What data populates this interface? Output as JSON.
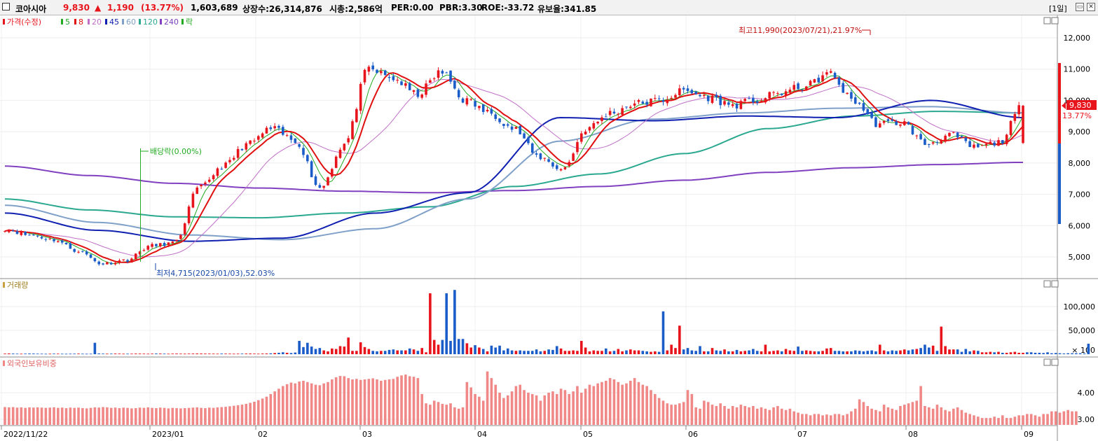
{
  "header": {
    "name": "코아시아",
    "price": "9,830",
    "change_arrow": "▲",
    "change": "1,190",
    "change_pct": "(13.77%)",
    "volume": "1,603,689",
    "listed_shares": "상장수:26,314,876",
    "market_cap": "시총:2,586억",
    "per": "PER:0.00",
    "pbr": "PBR:3.30",
    "roe": "ROE:-33.72",
    "float_ratio": "유보율:341.85",
    "period": "[1일]"
  },
  "colors": {
    "up": "#e8141c",
    "down": "#1a5cc8",
    "ma5": "#22aa22",
    "ma8": "#e01010",
    "ma20": "#c070c8",
    "ma45": "#1020b0",
    "ma60": "#7fa0c8",
    "ma120": "#2aa890",
    "ma240": "#8040c0",
    "foreign": "#f08888"
  },
  "chart_data": [
    {
      "type": "candlestick",
      "legend": [
        "가격(수정)",
        "5",
        "8",
        "20",
        "45",
        "60",
        "120",
        "240",
        "락"
      ],
      "y_ticks": [
        "12,000",
        "11,000",
        "10,000",
        "9,000",
        "8,000",
        "7,000",
        "6,000",
        "5,000"
      ],
      "ylim": [
        4500,
        12600
      ],
      "x_ticks": [
        "2022/11/22",
        "2023/01",
        "02",
        "03",
        "04",
        "05",
        "06",
        "07",
        "08",
        "09"
      ],
      "annotations": {
        "high": "최고11,990(2023/07/21),21.97%",
        "low": "최저4,715(2023/01/03),52.03%",
        "dividend": "배당락(0.00%)"
      },
      "last_price": "9,830",
      "last_change_pct": "13.77%",
      "anchors": [
        5900,
        5700,
        5550,
        5200,
        4780,
        4900,
        5350,
        5450,
        7200,
        7900,
        8600,
        9100,
        8700,
        7200,
        8600,
        11000,
        10700,
        10200,
        10900,
        10000,
        9600,
        9100,
        8200,
        7800,
        9100,
        9600,
        9900,
        10000,
        10300,
        10100,
        9850,
        10000,
        10250,
        10450,
        10850,
        10000,
        9250,
        9300,
        8600,
        8900,
        8500,
        8650,
        9830
      ],
      "ma240_anchors": [
        7900,
        7600,
        7350,
        7200,
        7100,
        7050,
        7120,
        7250,
        7450,
        7700,
        7850,
        7950,
        8020
      ],
      "ma120_anchors": [
        6850,
        6500,
        6280,
        6250,
        6400,
        6600,
        7250,
        7650,
        8300,
        9100,
        9500,
        9650,
        9600
      ],
      "ma60_anchors": [
        6650,
        6100,
        5700,
        5550,
        5900,
        6850,
        8700,
        9400,
        9600,
        9750,
        9800,
        9600
      ],
      "ma45_anchors": [
        6400,
        5850,
        5500,
        5600,
        6400,
        7050,
        9450,
        9350,
        9500,
        9450,
        10000,
        9450
      ]
    },
    {
      "type": "bar",
      "title": "거래량",
      "y_ticks": [
        "100,000",
        "50,000",
        "× 100"
      ],
      "ylim": [
        0,
        135000
      ],
      "values": [
        1200,
        1500,
        1300,
        1100,
        1000,
        1200,
        1400,
        1300,
        1100,
        1000,
        900,
        1000,
        1200,
        1100,
        1000,
        900,
        1000,
        1100,
        1200,
        1000,
        900,
        1000,
        24000,
        1500,
        1200,
        1000,
        1100,
        1300,
        1200,
        1000,
        1000,
        1100,
        1300,
        1200,
        1100,
        1000,
        1200,
        1400,
        1300,
        1100,
        1000,
        1200,
        1300,
        1100,
        1000,
        1200,
        1300,
        1500,
        1400,
        1300,
        1200,
        1100,
        1000,
        1300,
        1200,
        1100,
        1000,
        1100,
        1200,
        1300,
        1400,
        1200,
        1000,
        1300,
        1500,
        1800,
        2500,
        3000,
        4000,
        3000,
        2500,
        3500,
        28000,
        15000,
        24000,
        16000,
        11000,
        13000,
        8000,
        6000,
        12000,
        11000,
        17000,
        16000,
        35000,
        7000,
        7000,
        25000,
        15000,
        11000,
        7000,
        6000,
        7000,
        7000,
        9000,
        10000,
        8000,
        8000,
        8000,
        12000,
        10000,
        7000,
        13000,
        4000,
        128000,
        30000,
        20000,
        30000,
        128000,
        28000,
        135000,
        32000,
        32000,
        23000,
        14000,
        19000,
        14000,
        11000,
        6000,
        18000,
        14000,
        18000,
        8000,
        12000,
        8000,
        7000,
        8000,
        7000,
        7000,
        7000,
        10000,
        6000,
        7000,
        10000,
        9000,
        17000,
        12000,
        7000,
        7000,
        8000,
        7000,
        28000,
        14000,
        6000,
        8000,
        7000,
        7000,
        12000,
        6000,
        7000,
        11000,
        6000,
        8000,
        10000,
        8000,
        8000,
        7000,
        6000,
        5000,
        6000,
        5000,
        90000,
        8000,
        20000,
        13000,
        60000,
        10000,
        13000,
        8000,
        7000,
        17000,
        6000,
        6000,
        13000,
        8000,
        7000,
        10000,
        6000,
        6000,
        9000,
        6000,
        7000,
        8000,
        11000,
        7000,
        6000,
        20000,
        6000,
        7000,
        8000,
        6000,
        11000,
        8000,
        7000,
        16000,
        7000,
        8000,
        7000,
        6000,
        6000,
        7000,
        12000,
        13000,
        7000,
        7000,
        6000,
        6000,
        6000,
        8000,
        7000,
        6000,
        7000,
        8000,
        6000,
        20000,
        8000,
        6000,
        8000,
        7000,
        8000,
        10000,
        8000,
        10000,
        11000,
        13000,
        20000,
        14000,
        18000,
        7000,
        58000,
        17000,
        10000,
        10000,
        10000,
        5000,
        11000,
        6000,
        8000,
        7000,
        4000,
        4000,
        5000,
        4000,
        5000,
        3000,
        3000,
        4000,
        5000,
        3000,
        3000,
        4000,
        4000,
        3000,
        3000,
        2500,
        4000,
        2000,
        2500,
        2000,
        1500,
        2000,
        2000,
        2000,
        2000,
        1500,
        22000
      ]
    },
    {
      "type": "bar",
      "title": "외국인보유비중",
      "y_ticks": [
        "4.00",
        "3.00"
      ],
      "ylim": [
        2.78,
        5.05
      ],
      "values": [
        3.46,
        3.45,
        3.46,
        3.44,
        3.45,
        3.43,
        3.45,
        3.44,
        3.45,
        3.44,
        3.43,
        3.44,
        3.45,
        3.43,
        3.44,
        3.42,
        3.44,
        3.43,
        3.44,
        3.42,
        3.41,
        3.43,
        3.45,
        3.44,
        3.46,
        3.45,
        3.43,
        3.44,
        3.42,
        3.44,
        3.43,
        3.41,
        3.42,
        3.44,
        3.43,
        3.45,
        3.43,
        3.42,
        3.44,
        3.43,
        3.41,
        3.43,
        3.42,
        3.41,
        3.42,
        3.43,
        3.44,
        3.45,
        3.43,
        3.42,
        3.44,
        3.43,
        3.45,
        3.46,
        3.47,
        3.49,
        3.51,
        3.53,
        3.55,
        3.58,
        3.62,
        3.66,
        3.72,
        3.78,
        3.85,
        3.95,
        4.05,
        4.15,
        4.25,
        4.32,
        4.38,
        4.35,
        4.42,
        4.45,
        4.4,
        4.35,
        4.3,
        4.28,
        4.35,
        4.4,
        4.5,
        4.58,
        4.63,
        4.62,
        4.55,
        4.5,
        4.52,
        4.48,
        4.5,
        4.52,
        4.54,
        4.5,
        4.45,
        4.48,
        4.5,
        4.52,
        4.6,
        4.65,
        4.68,
        4.62,
        4.6,
        4.55,
        3.95,
        3.6,
        3.55,
        3.7,
        3.65,
        3.58,
        3.55,
        3.6,
        3.45,
        3.4,
        3.45,
        4.4,
        4.2,
        3.95,
        3.85,
        3.7,
        4.8,
        4.55,
        4.3,
        4.0,
        3.8,
        3.9,
        4.05,
        4.25,
        4.3,
        4.1,
        4.0,
        3.95,
        3.9,
        3.7,
        3.9,
        4.0,
        4.05,
        3.95,
        4.15,
        4.1,
        3.95,
        4.05,
        4.25,
        4.0,
        4.15,
        4.3,
        4.25,
        4.35,
        4.4,
        4.45,
        4.55,
        4.5,
        4.4,
        4.3,
        4.35,
        4.45,
        4.55,
        4.4,
        4.3,
        4.25,
        4.1,
        3.95,
        3.8,
        3.7,
        3.6,
        3.55,
        3.55,
        3.6,
        3.65,
        4.1,
        3.95,
        3.45,
        3.4,
        3.7,
        3.65,
        3.55,
        3.5,
        3.6,
        3.5,
        3.4,
        3.5,
        3.45,
        3.55,
        3.5,
        3.45,
        3.5,
        3.4,
        3.45,
        3.4,
        3.35,
        3.45,
        3.5,
        3.4,
        3.35,
        3.4,
        3.3,
        3.25,
        3.2,
        3.2,
        3.15,
        3.2,
        3.2,
        3.15,
        3.18,
        3.15,
        3.2,
        3.2,
        3.15,
        3.2,
        3.3,
        3.4,
        3.75,
        3.65,
        3.5,
        3.4,
        3.35,
        3.3,
        3.55,
        3.45,
        3.4,
        3.35,
        3.5,
        3.55,
        3.6,
        3.65,
        3.7,
        4.25,
        3.5,
        3.45,
        3.4,
        3.55,
        3.45,
        3.35,
        3.3,
        3.4,
        3.45,
        3.35,
        3.25,
        3.2,
        3.15,
        3.1,
        3.05,
        3.05,
        3.05,
        3.1,
        3.05,
        3.15,
        3.05,
        3.05,
        3.1,
        3.15,
        3.15,
        3.2,
        3.2,
        3.15,
        3.1,
        3.2,
        3.2,
        3.3,
        3.3,
        3.25,
        3.3,
        3.35,
        3.3,
        3.3
      ]
    }
  ]
}
